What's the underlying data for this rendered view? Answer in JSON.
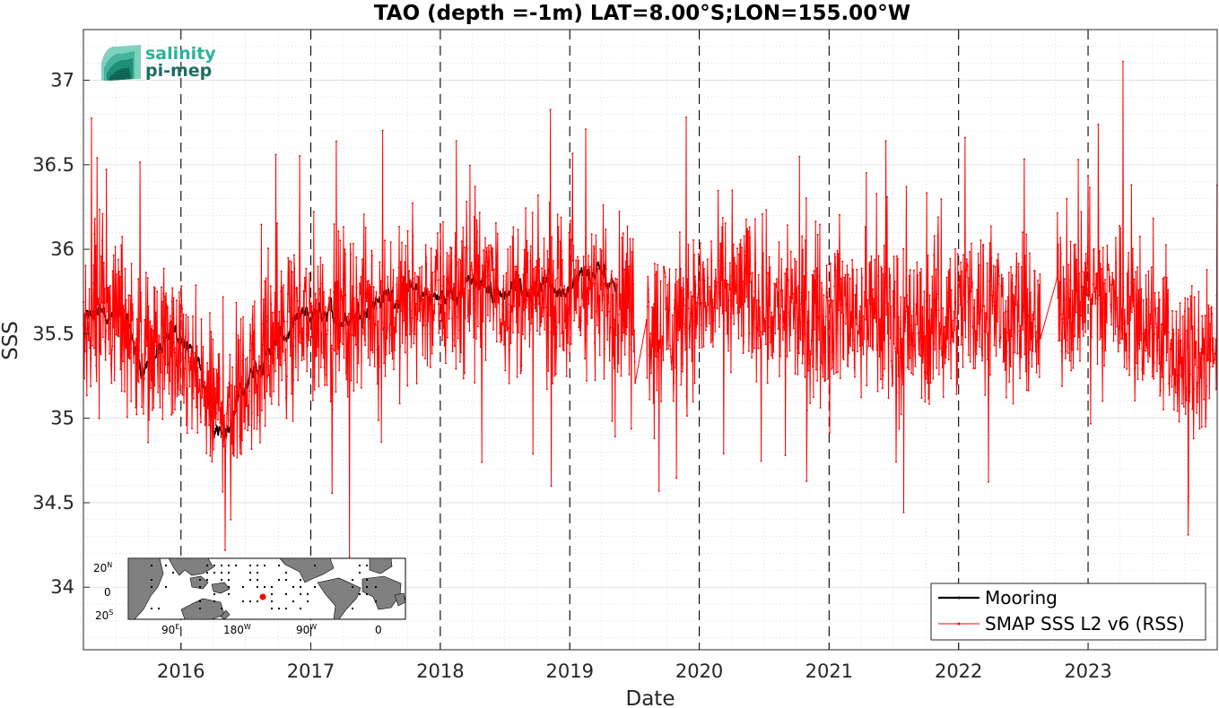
{
  "chart_data": {
    "type": "line",
    "title": "TAO (depth =-1m) LAT=8.00°S;LON=155.00°W",
    "xlabel": "Date",
    "ylabel": "SSS",
    "xlim": [
      "2015-04-01",
      "2023-12-31"
    ],
    "ylim": [
      33.63,
      37.3
    ],
    "x_ticks": [
      "2016",
      "2017",
      "2018",
      "2019",
      "2020",
      "2021",
      "2022",
      "2023"
    ],
    "y_ticks": [
      "34",
      "34.5",
      "35",
      "35.5",
      "36",
      "36.5",
      "37"
    ],
    "grid": true,
    "year_dividers": "dashed black vertical lines at each year start",
    "legend": {
      "position": "bottom-right",
      "entries": [
        "Mooring",
        "SMAP SSS L2 v6 (RSS)"
      ]
    },
    "series": [
      {
        "name": "Mooring",
        "color": "#000000",
        "anchors": [
          [
            "2015-04-01",
            35.55
          ],
          [
            "2015-06-01",
            35.65
          ],
          [
            "2015-08-01",
            35.55
          ],
          [
            "2015-09-15",
            35.3
          ],
          [
            "2015-11-01",
            35.4
          ],
          [
            "2016-01-01",
            35.5
          ],
          [
            "2016-02-15",
            35.3
          ],
          [
            "2016-04-01",
            35.0
          ],
          [
            "2016-05-15",
            34.95
          ],
          [
            "2016-07-01",
            35.2
          ],
          [
            "2016-09-01",
            35.4
          ],
          [
            "2016-11-01",
            35.5
          ],
          [
            "2017-01-01",
            35.6
          ],
          [
            "2017-04-01",
            35.6
          ],
          [
            "2017-07-01",
            35.7
          ],
          [
            "2017-10-01",
            35.75
          ],
          [
            "2018-01-01",
            35.7
          ],
          [
            "2018-04-01",
            35.8
          ],
          [
            "2018-07-01",
            35.75
          ],
          [
            "2018-10-01",
            35.8
          ],
          [
            "2019-01-01",
            35.75
          ],
          [
            "2019-03-01",
            35.85
          ],
          [
            "2019-05-15",
            35.8
          ]
        ]
      },
      {
        "name": "SMAP SSS L2 v6 (RSS)",
        "color": "#ff0000",
        "anchors": [
          [
            "2015-04-01",
            35.6
          ],
          [
            "2015-06-01",
            35.65
          ],
          [
            "2015-08-01",
            35.55
          ],
          [
            "2015-10-01",
            35.4
          ],
          [
            "2015-12-01",
            35.4
          ],
          [
            "2016-02-01",
            35.25
          ],
          [
            "2016-04-01",
            35.05
          ],
          [
            "2016-06-01",
            35.1
          ],
          [
            "2016-08-01",
            35.3
          ],
          [
            "2016-10-01",
            35.45
          ],
          [
            "2016-12-01",
            35.55
          ],
          [
            "2017-03-01",
            35.6
          ],
          [
            "2017-06-01",
            35.65
          ],
          [
            "2017-09-01",
            35.65
          ],
          [
            "2017-12-01",
            35.7
          ],
          [
            "2018-03-01",
            35.75
          ],
          [
            "2018-06-01",
            35.75
          ],
          [
            "2018-09-01",
            35.7
          ],
          [
            "2018-12-01",
            35.7
          ],
          [
            "2019-03-01",
            35.75
          ],
          [
            "2019-06-20",
            35.7
          ],
          [
            "2019-08-01",
            35.55
          ],
          [
            "2019-11-01",
            35.6
          ],
          [
            "2020-02-01",
            35.7
          ],
          [
            "2020-05-01",
            35.75
          ],
          [
            "2020-08-01",
            35.65
          ],
          [
            "2020-11-01",
            35.6
          ],
          [
            "2021-02-01",
            35.65
          ],
          [
            "2021-05-01",
            35.6
          ],
          [
            "2021-08-01",
            35.5
          ],
          [
            "2021-11-01",
            35.55
          ],
          [
            "2022-02-01",
            35.7
          ],
          [
            "2022-05-01",
            35.65
          ],
          [
            "2022-08-01",
            35.5
          ],
          [
            "2022-10-01",
            35.7
          ],
          [
            "2023-01-01",
            35.75
          ],
          [
            "2023-04-01",
            35.7
          ],
          [
            "2023-07-01",
            35.55
          ],
          [
            "2023-10-01",
            35.3
          ],
          [
            "2023-12-31",
            35.35
          ]
        ],
        "gaps": [
          [
            "2019-07-05",
            "2019-08-05"
          ],
          [
            "2022-08-20",
            "2022-10-05"
          ]
        ],
        "noise_amplitude": 0.28,
        "notable_peaks": [
          [
            "2015-05-10",
            36.54
          ],
          [
            "2016-05-05",
            34.22
          ],
          [
            "2016-05-20",
            34.4
          ],
          [
            "2016-09-25",
            36.56
          ],
          [
            "2017-04-20",
            34.18
          ],
          [
            "2018-02-15",
            36.64
          ],
          [
            "2019-02-15",
            36.71
          ],
          [
            "2019-11-25",
            36.78
          ],
          [
            "2021-06-10",
            36.64
          ],
          [
            "2022-01-20",
            36.66
          ],
          [
            "2023-04-10",
            37.11
          ],
          [
            "2023-10-10",
            34.31
          ],
          [
            "2019-09-10",
            34.57
          ],
          [
            "2018-11-10",
            34.6
          ]
        ]
      }
    ]
  },
  "logo": {
    "line1": "salinity",
    "line2": "pi-mep"
  },
  "inset_map": {
    "y_labels": [
      "20",
      "N",
      "0",
      "",
      "20",
      "S"
    ],
    "x_labels": [
      "90",
      "E",
      "180",
      "W",
      "90",
      "W",
      "0",
      ""
    ]
  }
}
